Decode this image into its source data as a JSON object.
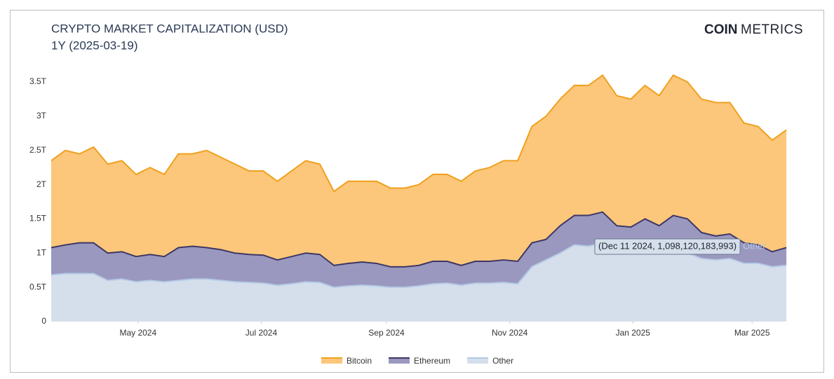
{
  "chart_data": {
    "type": "stacked-area",
    "title": "CRYPTO MARKET CAPITALIZATION (USD)",
    "subtitle": "1Y (2025-03-19)",
    "logo": {
      "bold": "COIN",
      "light": "METRICS"
    },
    "x": [
      "2024-03-19",
      "2024-03-26",
      "2024-04-02",
      "2024-04-09",
      "2024-04-16",
      "2024-04-23",
      "2024-04-30",
      "2024-05-07",
      "2024-05-14",
      "2024-05-21",
      "2024-05-28",
      "2024-06-04",
      "2024-06-11",
      "2024-06-18",
      "2024-06-25",
      "2024-07-02",
      "2024-07-09",
      "2024-07-16",
      "2024-07-23",
      "2024-07-30",
      "2024-08-06",
      "2024-08-13",
      "2024-08-20",
      "2024-08-27",
      "2024-09-03",
      "2024-09-10",
      "2024-09-17",
      "2024-09-24",
      "2024-10-01",
      "2024-10-08",
      "2024-10-15",
      "2024-10-22",
      "2024-10-29",
      "2024-11-05",
      "2024-11-12",
      "2024-11-19",
      "2024-11-26",
      "2024-12-03",
      "2024-12-10",
      "2024-12-17",
      "2024-12-24",
      "2024-12-31",
      "2025-01-07",
      "2025-01-14",
      "2025-01-21",
      "2025-01-28",
      "2025-02-04",
      "2025-02-11",
      "2025-02-18",
      "2025-02-25",
      "2025-03-04",
      "2025-03-11",
      "2025-03-18"
    ],
    "xlim": [
      "2024-03-19",
      "2025-03-19"
    ],
    "xticks": [
      {
        "value": "2024-05-01",
        "label": "May 2024"
      },
      {
        "value": "2024-07-01",
        "label": "Jul 2024"
      },
      {
        "value": "2024-09-01",
        "label": "Sep 2024"
      },
      {
        "value": "2024-11-01",
        "label": "Nov 2024"
      },
      {
        "value": "2025-01-01",
        "label": "Jan 2025"
      },
      {
        "value": "2025-03-01",
        "label": "Mar 2025"
      }
    ],
    "ylim": [
      0,
      3.75
    ],
    "yticks": [
      0,
      {
        "value": 0.5,
        "label": "0.5T"
      },
      {
        "value": 1,
        "label": "1T"
      },
      {
        "value": 1.5,
        "label": "1.5T"
      },
      {
        "value": 2,
        "label": "2T"
      },
      {
        "value": 2.5,
        "label": "2.5T"
      },
      {
        "value": 3,
        "label": "3T"
      },
      {
        "value": 3.5,
        "label": "3.5T"
      }
    ],
    "grid": false,
    "legend": "bottom",
    "series": [
      {
        "name": "Bitcoin",
        "color": "#f0a01e",
        "fill": "#fcc77a",
        "values": [
          1.27,
          1.38,
          1.3,
          1.4,
          1.3,
          1.33,
          1.2,
          1.27,
          1.2,
          1.37,
          1.35,
          1.42,
          1.35,
          1.3,
          1.22,
          1.23,
          1.15,
          1.25,
          1.35,
          1.32,
          1.08,
          1.2,
          1.18,
          1.2,
          1.15,
          1.15,
          1.18,
          1.27,
          1.27,
          1.23,
          1.32,
          1.37,
          1.45,
          1.47,
          1.7,
          1.8,
          1.85,
          1.9,
          1.9,
          2.0,
          1.9,
          1.87,
          1.95,
          1.9,
          2.05,
          2.0,
          1.95,
          1.95,
          1.92,
          1.75,
          1.73,
          1.63,
          1.72
        ]
      },
      {
        "name": "Ethereum",
        "color": "#3d3766",
        "fill": "#9b98c0",
        "values": [
          0.4,
          0.42,
          0.45,
          0.45,
          0.4,
          0.4,
          0.37,
          0.38,
          0.37,
          0.48,
          0.48,
          0.46,
          0.45,
          0.42,
          0.41,
          0.41,
          0.37,
          0.4,
          0.42,
          0.41,
          0.32,
          0.33,
          0.34,
          0.33,
          0.3,
          0.3,
          0.3,
          0.33,
          0.32,
          0.29,
          0.32,
          0.32,
          0.33,
          0.33,
          0.35,
          0.3,
          0.4,
          0.43,
          0.45,
          0.45,
          0.4,
          0.38,
          0.45,
          0.4,
          0.5,
          0.5,
          0.38,
          0.35,
          0.36,
          0.3,
          0.27,
          0.22,
          0.26
        ]
      },
      {
        "name": "Other",
        "color": "#b5cbe6",
        "fill": "#d5dfeb",
        "values": [
          0.68,
          0.7,
          0.7,
          0.7,
          0.6,
          0.62,
          0.58,
          0.6,
          0.58,
          0.6,
          0.62,
          0.62,
          0.6,
          0.58,
          0.57,
          0.56,
          0.53,
          0.55,
          0.58,
          0.57,
          0.5,
          0.52,
          0.53,
          0.52,
          0.5,
          0.5,
          0.52,
          0.55,
          0.56,
          0.53,
          0.56,
          0.56,
          0.57,
          0.55,
          0.8,
          0.9,
          1.0,
          1.12,
          1.1,
          1.15,
          1.0,
          1.0,
          1.05,
          1.0,
          1.05,
          1.0,
          0.92,
          0.9,
          0.92,
          0.85,
          0.85,
          0.8,
          0.82
        ]
      }
    ],
    "tooltip": {
      "text": "(Dec 11 2024, 1,098,120,183,993)",
      "series": "Other"
    }
  }
}
